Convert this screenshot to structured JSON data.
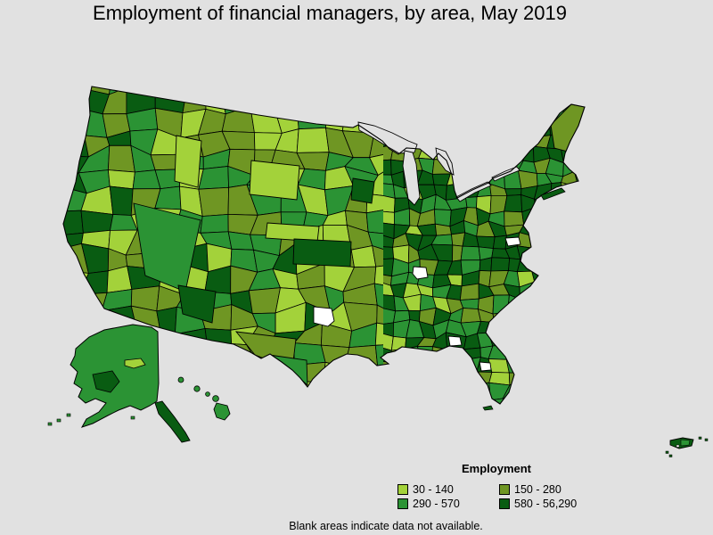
{
  "title": "Employment of financial managers, by area, May 2019",
  "footnote": "Blank areas indicate data not available.",
  "legend": {
    "title": "Employment",
    "items": [
      {
        "label": "30 - 140",
        "color": "#A3D23A",
        "min": 30,
        "max": 140
      },
      {
        "label": "150 - 280",
        "color": "#6F9623",
        "min": 150,
        "max": 280
      },
      {
        "label": "290 - 570",
        "color": "#2B9334",
        "min": 290,
        "max": 570
      },
      {
        "label": "580 - 56,290",
        "color": "#095C12",
        "min": 580,
        "max": 56290
      }
    ]
  },
  "map": {
    "name": "united-states-choropleth",
    "measure": "Employment of financial managers",
    "period": "May 2019",
    "regions": [
      "Contiguous United States",
      "Alaska",
      "Hawaii",
      "Puerto Rico"
    ],
    "colors": {
      "background": "#E1E1E1",
      "water": "#E1E1E1",
      "border": "#000000",
      "blank_area": "#FFFFFF"
    }
  }
}
